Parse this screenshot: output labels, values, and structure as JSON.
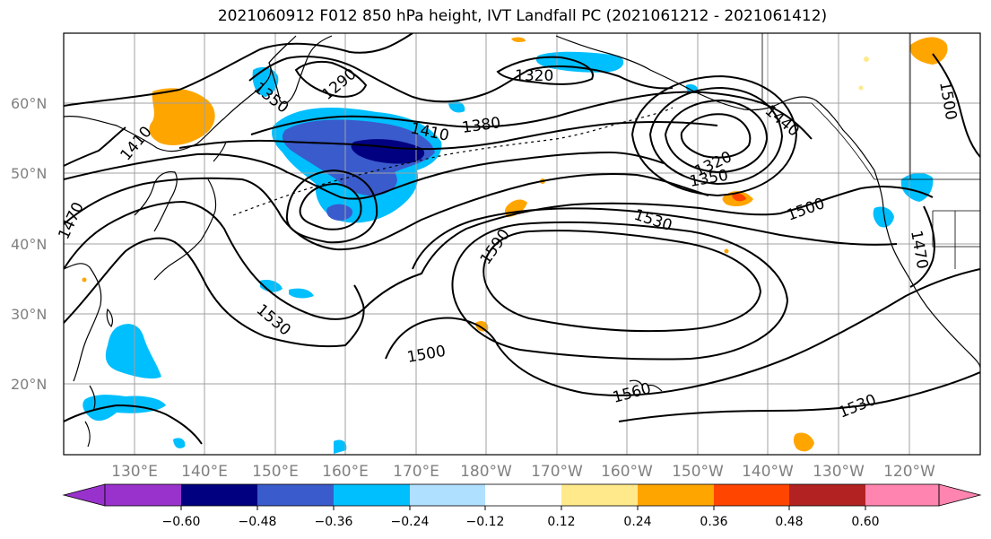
{
  "title": "2021060912 F012 850 hPa height, IVT Landfall PC (2021061212 - 2021061412)",
  "colors": {
    "cb_neg_extend": "#9932cc",
    "cb_1": "#000080",
    "cb_2": "#3a5bcc",
    "cb_3": "#00bfff",
    "cb_4": "#b0e0ff",
    "cb_5": "#ffffff",
    "cb_6": "#ffe98a",
    "cb_7": "#ffa500",
    "cb_8": "#ff4500",
    "cb_9": "#b22222",
    "cb_pos_extend": "#ff85b0"
  },
  "lat_labels": [
    "60°N",
    "50°N",
    "40°N",
    "30°N",
    "20°N"
  ],
  "lon_labels": [
    "130°E",
    "140°E",
    "150°E",
    "160°E",
    "170°E",
    "180°W",
    "170°W",
    "160°W",
    "150°W",
    "140°W",
    "130°W",
    "120°W"
  ],
  "colorbar_ticks": [
    "−0.60",
    "−0.48",
    "−0.36",
    "−0.24",
    "−0.12",
    "0.12",
    "0.24",
    "0.36",
    "0.48",
    "0.60"
  ],
  "contour_labels": [
    "1350",
    "1290",
    "1320",
    "1380",
    "1410",
    "1410",
    "1440",
    "1320",
    "1350",
    "1500",
    "1470",
    "1530",
    "1590",
    "1500",
    "1530",
    "1560",
    "1530",
    "1470",
    "1500"
  ]
}
